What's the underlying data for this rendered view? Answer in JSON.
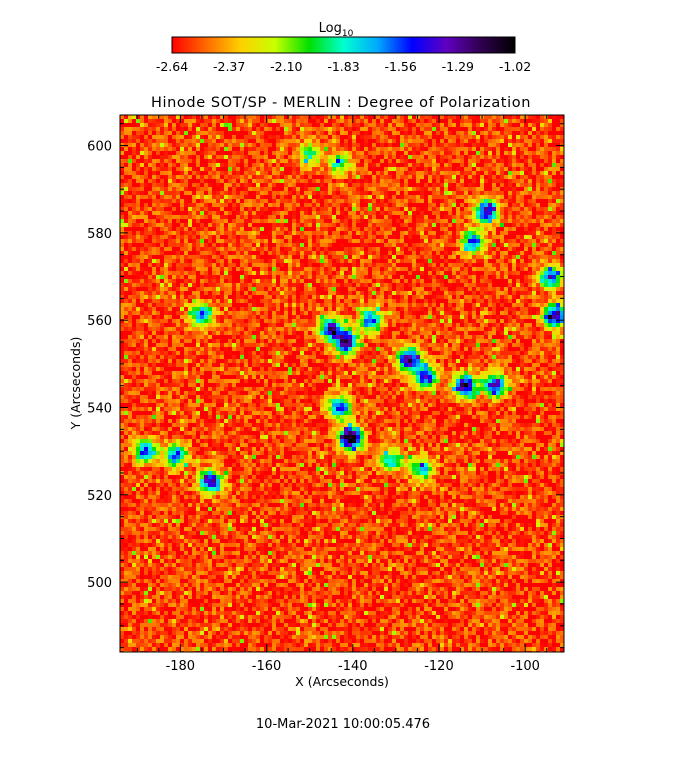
{
  "chart_data": {
    "type": "heatmap",
    "title": "Hinode SOT/SP - MERLIN : Degree of Polarization",
    "xlabel": "X (Arcseconds)",
    "ylabel": "Y (Arcseconds)",
    "footer": "10-Mar-2021 10:00:05.476",
    "colorbar": {
      "label_base": "Log",
      "label_sub": "10",
      "ticks": [
        "-2.64",
        "-2.37",
        "-2.10",
        "-1.83",
        "-1.56",
        "-1.29",
        "-1.02"
      ],
      "range": [
        -2.64,
        -1.02
      ],
      "colors": [
        "#ff0000",
        "#ff6a00",
        "#ffd000",
        "#c8ff00",
        "#00e000",
        "#00ffd0",
        "#00a8ff",
        "#0000ff",
        "#6000c0",
        "#300050",
        "#000000"
      ]
    },
    "xlim": [
      -194,
      -91
    ],
    "ylim": [
      484,
      607
    ],
    "xticks": [
      -180,
      -160,
      -140,
      -120,
      -100
    ],
    "yticks": [
      500,
      520,
      540,
      560,
      580,
      600
    ],
    "background_level": -2.55,
    "features": [
      {
        "x": -140.5,
        "y": 533,
        "level": -1.05
      },
      {
        "x": -141.5,
        "y": 555,
        "level": -1.3
      },
      {
        "x": -145,
        "y": 558,
        "level": -1.4
      },
      {
        "x": -136,
        "y": 560,
        "level": -1.55
      },
      {
        "x": -127,
        "y": 551,
        "level": -1.25
      },
      {
        "x": -123,
        "y": 547,
        "level": -1.45
      },
      {
        "x": -114,
        "y": 545,
        "level": -1.3
      },
      {
        "x": -107,
        "y": 545,
        "level": -1.4
      },
      {
        "x": -143,
        "y": 540,
        "level": -1.5
      },
      {
        "x": -131,
        "y": 528,
        "level": -1.8
      },
      {
        "x": -124,
        "y": 526,
        "level": -1.75
      },
      {
        "x": -188,
        "y": 530,
        "level": -1.55
      },
      {
        "x": -181,
        "y": 529,
        "level": -1.6
      },
      {
        "x": -173,
        "y": 523,
        "level": -1.35
      },
      {
        "x": -175,
        "y": 561,
        "level": -1.6
      },
      {
        "x": -109,
        "y": 585,
        "level": -1.35
      },
      {
        "x": -112,
        "y": 578,
        "level": -1.6
      },
      {
        "x": -93,
        "y": 561,
        "level": -1.3
      },
      {
        "x": -94,
        "y": 570,
        "level": -1.6
      },
      {
        "x": -143,
        "y": 596,
        "level": -1.9
      },
      {
        "x": -150,
        "y": 598,
        "level": -1.95
      }
    ]
  }
}
